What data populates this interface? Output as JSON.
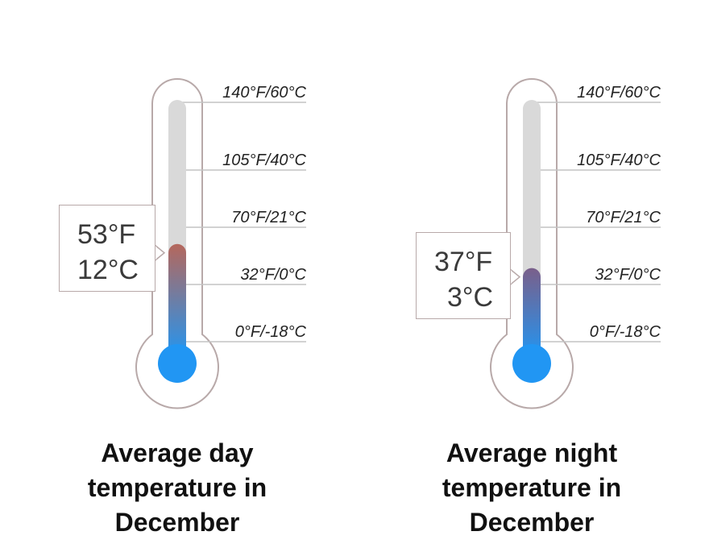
{
  "chart_data": [
    {
      "type": "thermometer",
      "title_lines": [
        "Average day",
        "temperature in",
        "December"
      ],
      "value_f": 53,
      "value_c": 12,
      "reading_f_label": "53°F",
      "reading_c_label": "12°C",
      "tick_labels": [
        "140°F/60°C",
        "105°F/40°C",
        "70°F/21°C",
        "32°F/0°C",
        "0°F/-18°C"
      ],
      "tick_values_f": [
        140,
        105,
        70,
        32,
        0
      ],
      "fill_colors": {
        "cold": "#2196f3",
        "warm": "#b5675c"
      }
    },
    {
      "type": "thermometer",
      "title_lines": [
        "Average night",
        "temperature in",
        "December"
      ],
      "value_f": 37,
      "value_c": 3,
      "reading_f_label": "37°F",
      "reading_c_label": "3°C",
      "tick_labels": [
        "140°F/60°C",
        "105°F/40°C",
        "70°F/21°C",
        "32°F/0°C",
        "0°F/-18°C"
      ],
      "tick_values_f": [
        140,
        105,
        70,
        32,
        0
      ],
      "fill_colors": {
        "cold": "#2196f3",
        "warm": "#7a5f8a"
      }
    }
  ],
  "colors": {
    "outline": "#b8a9a9",
    "tube_empty": "#d9d9d9",
    "tick_line": "#c4c4c4",
    "bulb": "#2196f3"
  }
}
